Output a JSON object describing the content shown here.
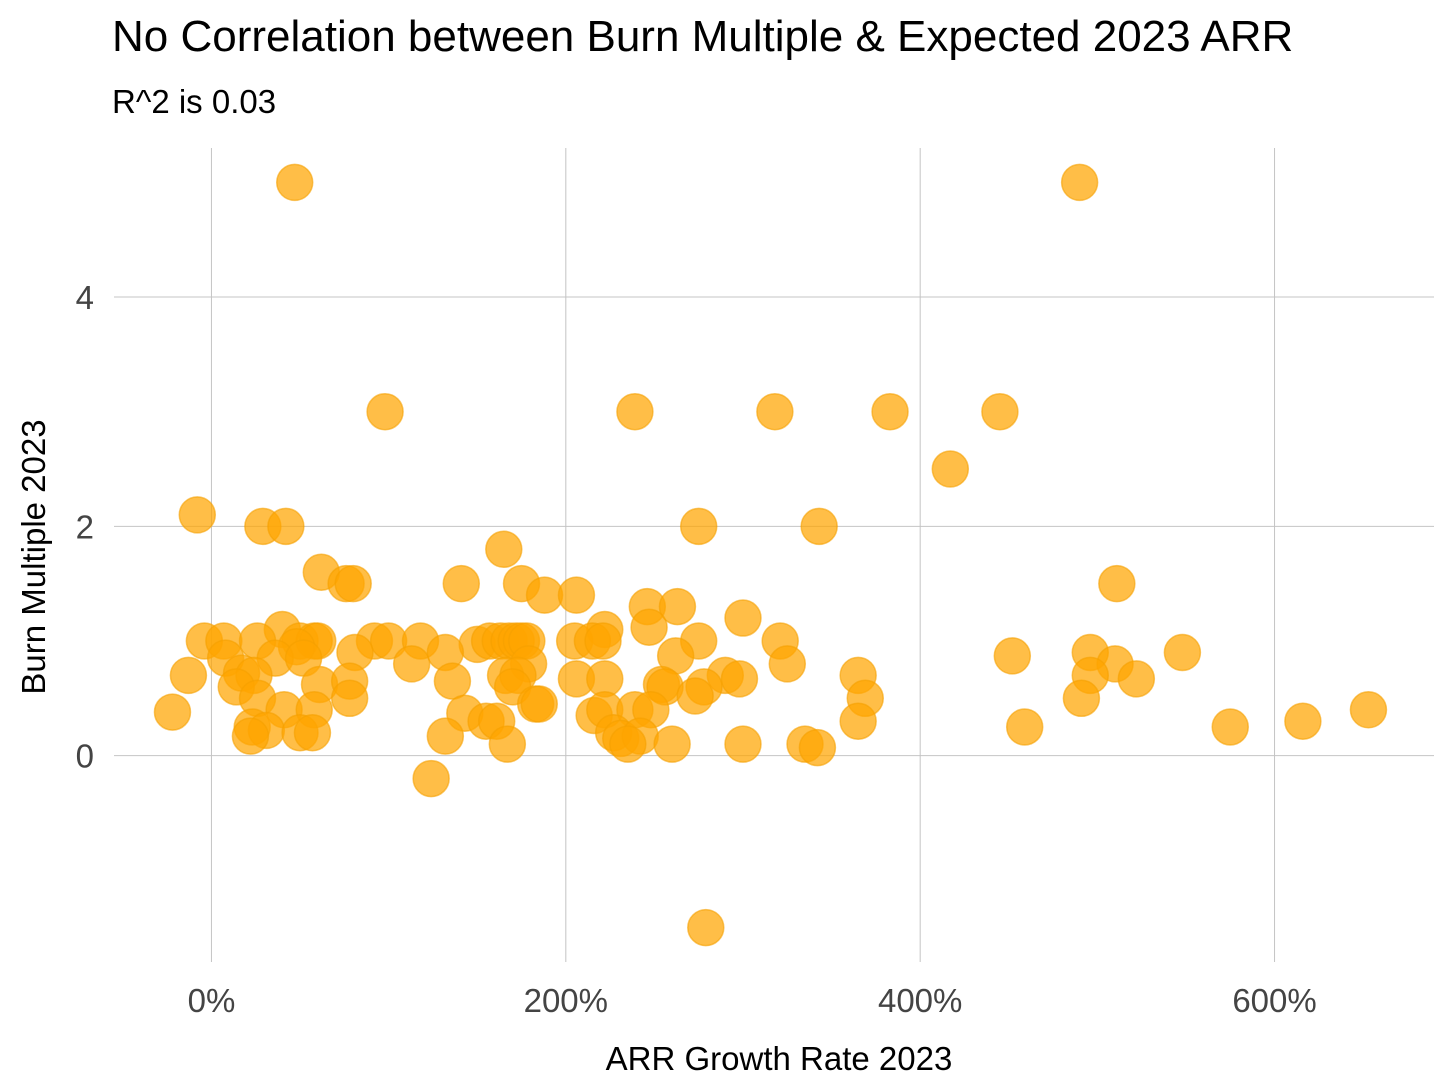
{
  "colors": {
    "point_fill": "#FFA500",
    "point_stroke": "#F5A000",
    "grid": "#c4c4c4",
    "tick_text": "#444444"
  },
  "chart_data": {
    "type": "scatter",
    "title": "No Correlation between Burn Multiple & Expected 2023 ARR",
    "subtitle": "R^2 is 0.03",
    "xlabel": "ARR Growth Rate 2023",
    "ylabel": "Burn Multiple 2023",
    "x_unit": "%",
    "xlim": [
      -55,
      690
    ],
    "ylim": [
      -1.8,
      5.3
    ],
    "x_ticks": [
      0,
      200,
      400,
      600
    ],
    "x_tick_labels": [
      "0%",
      "200%",
      "400%",
      "600%"
    ],
    "y_ticks": [
      0,
      2,
      4
    ],
    "y_tick_labels": [
      "0",
      "2",
      "4"
    ],
    "grid": true,
    "legend": "none",
    "points": [
      {
        "x": 47,
        "y": 5.0
      },
      {
        "x": 490,
        "y": 5.0
      },
      {
        "x": 98,
        "y": 3.0
      },
      {
        "x": 239,
        "y": 3.0
      },
      {
        "x": 318,
        "y": 3.0
      },
      {
        "x": 383,
        "y": 3.0
      },
      {
        "x": 445,
        "y": 3.0
      },
      {
        "x": 417,
        "y": 2.5
      },
      {
        "x": -8,
        "y": 2.1
      },
      {
        "x": 29,
        "y": 2.0
      },
      {
        "x": 42,
        "y": 2.0
      },
      {
        "x": 275,
        "y": 2.0
      },
      {
        "x": 343,
        "y": 2.0
      },
      {
        "x": 165,
        "y": 1.8
      },
      {
        "x": 62,
        "y": 1.6
      },
      {
        "x": 76,
        "y": 1.5
      },
      {
        "x": 80,
        "y": 1.5
      },
      {
        "x": 141,
        "y": 1.5
      },
      {
        "x": 175,
        "y": 1.5
      },
      {
        "x": 511,
        "y": 1.5
      },
      {
        "x": 188,
        "y": 1.4
      },
      {
        "x": 206,
        "y": 1.4
      },
      {
        "x": 246,
        "y": 1.3
      },
      {
        "x": 263,
        "y": 1.3
      },
      {
        "x": 300,
        "y": 1.2
      },
      {
        "x": 222,
        "y": 1.1
      },
      {
        "x": 247,
        "y": 1.12
      },
      {
        "x": 40,
        "y": 1.1
      },
      {
        "x": -4,
        "y": 1.0
      },
      {
        "x": 7,
        "y": 1.0
      },
      {
        "x": 26,
        "y": 1.0
      },
      {
        "x": 50,
        "y": 1.0
      },
      {
        "x": 58,
        "y": 1.0
      },
      {
        "x": 60,
        "y": 1.0
      },
      {
        "x": 92,
        "y": 1.0
      },
      {
        "x": 100,
        "y": 1.0
      },
      {
        "x": 118,
        "y": 1.0
      },
      {
        "x": 150,
        "y": 0.97
      },
      {
        "x": 157,
        "y": 1.0
      },
      {
        "x": 163,
        "y": 1.0
      },
      {
        "x": 168,
        "y": 1.0
      },
      {
        "x": 172,
        "y": 1.0
      },
      {
        "x": 175,
        "y": 1.0
      },
      {
        "x": 178,
        "y": 1.0
      },
      {
        "x": 205,
        "y": 1.0
      },
      {
        "x": 215,
        "y": 1.0
      },
      {
        "x": 221,
        "y": 1.0
      },
      {
        "x": 275,
        "y": 1.0
      },
      {
        "x": 321,
        "y": 1.0
      },
      {
        "x": 48,
        "y": 0.95
      },
      {
        "x": 496,
        "y": 0.9
      },
      {
        "x": 8,
        "y": 0.85
      },
      {
        "x": 36,
        "y": 0.85
      },
      {
        "x": 52,
        "y": 0.85
      },
      {
        "x": 81,
        "y": 0.9
      },
      {
        "x": 113,
        "y": 0.8
      },
      {
        "x": 132,
        "y": 0.9
      },
      {
        "x": 452,
        "y": 0.87
      },
      {
        "x": 548,
        "y": 0.9
      },
      {
        "x": 262,
        "y": 0.87
      },
      {
        "x": 325,
        "y": 0.8
      },
      {
        "x": 179,
        "y": 0.8
      },
      {
        "x": 510,
        "y": 0.8
      },
      {
        "x": -13,
        "y": 0.7
      },
      {
        "x": 17,
        "y": 0.72
      },
      {
        "x": 24,
        "y": 0.7
      },
      {
        "x": 166,
        "y": 0.7
      },
      {
        "x": 173,
        "y": 0.7
      },
      {
        "x": 290,
        "y": 0.7
      },
      {
        "x": 298,
        "y": 0.67
      },
      {
        "x": 206,
        "y": 0.67
      },
      {
        "x": 222,
        "y": 0.67
      },
      {
        "x": 365,
        "y": 0.7
      },
      {
        "x": 496,
        "y": 0.7
      },
      {
        "x": 522,
        "y": 0.67
      },
      {
        "x": 14,
        "y": 0.6
      },
      {
        "x": 61,
        "y": 0.62
      },
      {
        "x": 78,
        "y": 0.65
      },
      {
        "x": 136,
        "y": 0.65
      },
      {
        "x": 170,
        "y": 0.6
      },
      {
        "x": 254,
        "y": 0.62
      },
      {
        "x": 256,
        "y": 0.6
      },
      {
        "x": 278,
        "y": 0.6
      },
      {
        "x": 26,
        "y": 0.5
      },
      {
        "x": 78,
        "y": 0.5
      },
      {
        "x": 183,
        "y": 0.45
      },
      {
        "x": 185,
        "y": 0.45
      },
      {
        "x": 273,
        "y": 0.52
      },
      {
        "x": 369,
        "y": 0.5
      },
      {
        "x": 491,
        "y": 0.5
      },
      {
        "x": -22,
        "y": 0.38
      },
      {
        "x": 41,
        "y": 0.4
      },
      {
        "x": 58,
        "y": 0.4
      },
      {
        "x": 143,
        "y": 0.37
      },
      {
        "x": 216,
        "y": 0.35
      },
      {
        "x": 222,
        "y": 0.4
      },
      {
        "x": 239,
        "y": 0.4
      },
      {
        "x": 248,
        "y": 0.4
      },
      {
        "x": 653,
        "y": 0.4
      },
      {
        "x": 155,
        "y": 0.3
      },
      {
        "x": 161,
        "y": 0.3
      },
      {
        "x": 365,
        "y": 0.3
      },
      {
        "x": 616,
        "y": 0.3
      },
      {
        "x": 23,
        "y": 0.25
      },
      {
        "x": 31,
        "y": 0.22
      },
      {
        "x": 459,
        "y": 0.25
      },
      {
        "x": 575,
        "y": 0.25
      },
      {
        "x": 22,
        "y": 0.17
      },
      {
        "x": 50,
        "y": 0.2
      },
      {
        "x": 57,
        "y": 0.2
      },
      {
        "x": 132,
        "y": 0.17
      },
      {
        "x": 227,
        "y": 0.2
      },
      {
        "x": 231,
        "y": 0.15
      },
      {
        "x": 242,
        "y": 0.17
      },
      {
        "x": 167,
        "y": 0.1
      },
      {
        "x": 235,
        "y": 0.1
      },
      {
        "x": 260,
        "y": 0.1
      },
      {
        "x": 300,
        "y": 0.1
      },
      {
        "x": 335,
        "y": 0.1
      },
      {
        "x": 342,
        "y": 0.07
      },
      {
        "x": 124,
        "y": -0.2
      },
      {
        "x": 279,
        "y": -1.5
      }
    ]
  }
}
